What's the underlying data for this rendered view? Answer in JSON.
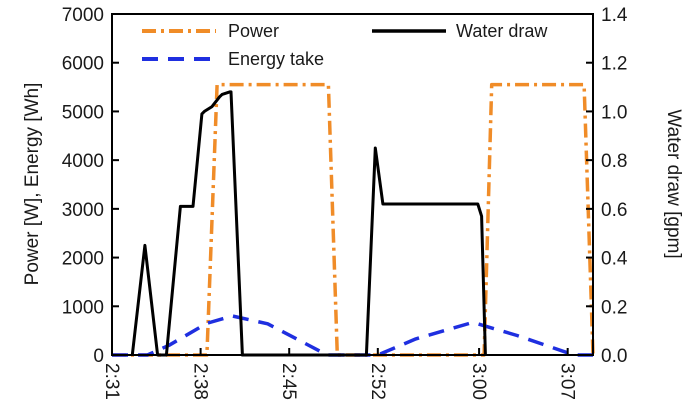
{
  "chart_data": {
    "type": "line",
    "x_tick_labels": [
      "2:31",
      "2:38",
      "2:45",
      "2:52",
      "3:00",
      "3:07"
    ],
    "x_ticks_minutes": [
      151,
      158,
      165,
      172,
      180,
      187
    ],
    "xlim_minutes": [
      151,
      189
    ],
    "y_left": {
      "label": "Power [W], Energy [Wh]",
      "lim": [
        0,
        7000
      ],
      "ticks": [
        0,
        1000,
        2000,
        3000,
        4000,
        5000,
        6000,
        7000
      ],
      "tick_labels": [
        "0",
        "1000",
        "2000",
        "3000",
        "4000",
        "5000",
        "6000",
        "7000"
      ]
    },
    "y_right": {
      "label": "Water draw [gpm]",
      "lim": [
        0,
        1.4
      ],
      "ticks": [
        0,
        0.2,
        0.4,
        0.6,
        0.8,
        1.0,
        1.2,
        1.4
      ],
      "tick_labels": [
        "0.0",
        "0.2",
        "0.4",
        "0.6",
        "0.8",
        "1.0",
        "1.2",
        "1.4"
      ]
    },
    "legend": [
      "Power",
      "Water draw",
      "Energy take"
    ],
    "series": [
      {
        "name": "Power",
        "axis": "left",
        "style": "dashdot",
        "color": "#f08c28",
        "x": [
          151.0,
          158.5,
          159.3,
          168.1,
          168.8,
          180.4,
          181.0,
          188.3,
          189.0
        ],
        "y": [
          0,
          0,
          5550,
          5550,
          0,
          0,
          5550,
          5550,
          0
        ]
      },
      {
        "name": "Water draw",
        "axis": "right",
        "style": "solid",
        "color": "#000000",
        "x": [
          152.6,
          153.6,
          154.6,
          155.3,
          156.4,
          156.9,
          157.4,
          158.1,
          158.3,
          158.9,
          159.5,
          159.7,
          160.3,
          160.4,
          161.3,
          171.1,
          171.8,
          172.4,
          179.9,
          180.2,
          180.5
        ],
        "y": [
          0,
          0.45,
          0,
          0,
          0.61,
          0.61,
          0.61,
          0.99,
          1.0,
          1.02,
          1.06,
          1.07,
          1.08,
          1.08,
          0,
          0,
          0.85,
          0.62,
          0.62,
          0.57,
          0
        ]
      },
      {
        "name": "Energy take",
        "axis": "left",
        "style": "dashed",
        "color": "#1f2fe0",
        "x": [
          151.0,
          153.8,
          155.5,
          158.5,
          160.5,
          163.3,
          168.0,
          172.0,
          175.0,
          179.5,
          183.0,
          187.5,
          189.0
        ],
        "y": [
          0,
          0,
          200,
          650,
          800,
          640,
          0,
          0,
          330,
          670,
          400,
          0,
          0
        ]
      }
    ]
  },
  "colors": {
    "power": "#f08c28",
    "water": "#000000",
    "energy": "#1f2fe0",
    "axis": "#000000"
  }
}
